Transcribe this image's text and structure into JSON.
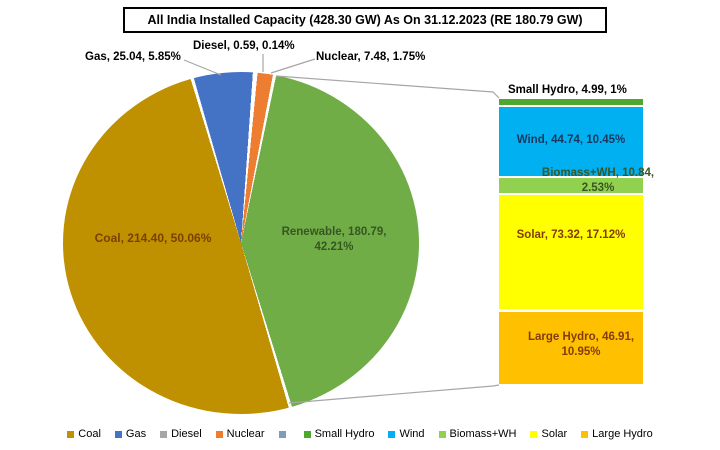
{
  "title": "All India Installed Capacity (428.30 GW) As On 31.12.2023 (RE 180.79 GW)",
  "labels": {
    "coal": "Coal, 214.40, 50.06%",
    "renewable_line1": "Renewable, 180.79,",
    "renewable_line2": "42.21%",
    "gas": "Gas, 25.04, 5.85%",
    "diesel": "Diesel, 0.59, 0.14%",
    "nuclear": "Nuclear, 7.48, 1.75%",
    "small_hydro": "Small Hydro, 4.99, 1%",
    "wind": "Wind, 44.74, 10.45%",
    "biomass_line1": "Biomass+WH, 10.84,",
    "biomass_line2": "2.53%",
    "solar": "Solar, 73.32, 17.12%",
    "large_hydro_line1": "Large Hydro, 46.91,",
    "large_hydro_line2": "10.95%"
  },
  "chart_data": [
    {
      "type": "pie",
      "title": "All India Installed Capacity (428.30 GW) As On 31.12.2023 (RE 180.79 GW)",
      "unit": "GW",
      "total_gw": 428.3,
      "start_angle_deg": 5,
      "slices": [
        {
          "name": "Nuclear",
          "value": 7.48,
          "pct": 1.75,
          "color": "#ED7D31"
        },
        {
          "name": "Renewable",
          "value": 180.79,
          "pct": 42.21,
          "color": "#70AD47"
        },
        {
          "name": "Coal",
          "value": 214.4,
          "pct": 50.06,
          "color": "#BF9000"
        },
        {
          "name": "Gas",
          "value": 25.04,
          "pct": 5.85,
          "color": "#4472C4"
        },
        {
          "name": "Diesel",
          "value": 0.59,
          "pct": 0.14,
          "color": "#A5A5A5"
        }
      ]
    },
    {
      "type": "bar",
      "stacked": true,
      "total_gw": 180.79,
      "categories": [
        "Small Hydro",
        "Wind",
        "Biomass+WH",
        "Solar",
        "Large Hydro"
      ],
      "values": [
        4.99,
        44.74,
        10.84,
        73.32,
        46.91
      ],
      "pct_of_total": [
        1,
        10.45,
        2.53,
        17.12,
        10.95
      ],
      "colors": [
        "#4EA72E",
        "#00B0F0",
        "#92D050",
        "#FFFF00",
        "#FFC000"
      ]
    }
  ],
  "legend": {
    "items": [
      {
        "label": "Coal",
        "color": "#BF9000"
      },
      {
        "label": "Gas",
        "color": "#4472C4"
      },
      {
        "label": "Diesel",
        "color": "#A5A5A5"
      },
      {
        "label": "Nuclear",
        "color": "#ED7D31"
      },
      {
        "label": "",
        "color": "#7F9DB9"
      },
      {
        "label": "Small Hydro",
        "color": "#4EA72E"
      },
      {
        "label": "Wind",
        "color": "#00B0F0"
      },
      {
        "label": "Biomass+WH",
        "color": "#92D050"
      },
      {
        "label": "Solar",
        "color": "#FFFF00"
      },
      {
        "label": "Large Hydro",
        "color": "#FFC000"
      }
    ]
  },
  "colors": {
    "background": "#FFFFFF",
    "leader_line": "#A6A6A6",
    "coal_text": "#7B3F00",
    "renewable_text": "#375623",
    "wind_text": "#17375E",
    "biomass_text": "#375623",
    "solar_text": "#833C00",
    "large_hydro_text": "#843C0C"
  }
}
